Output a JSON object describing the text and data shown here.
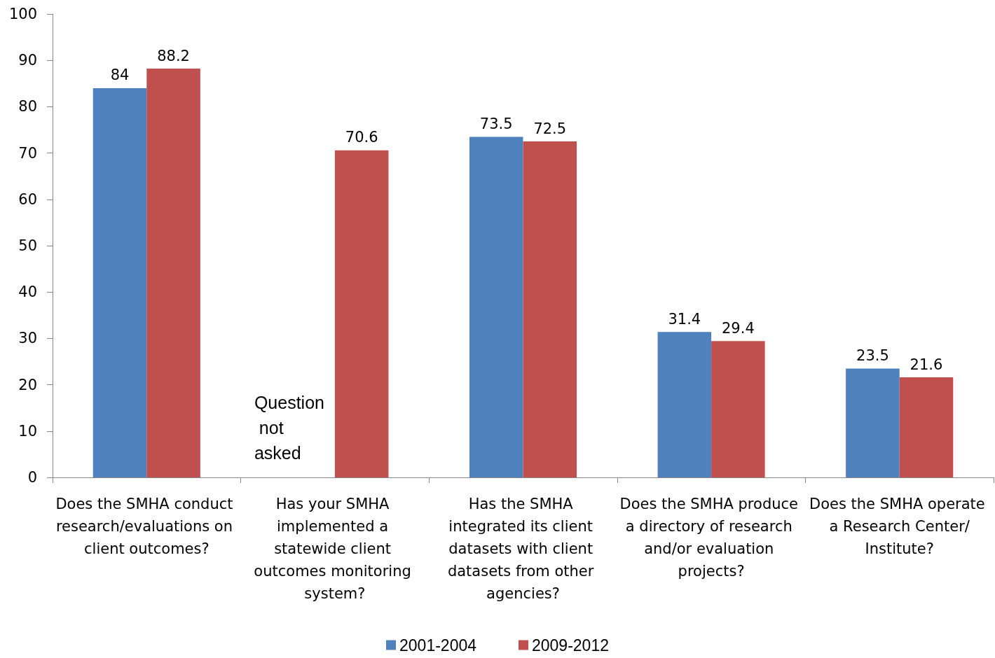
{
  "chart_data": {
    "type": "bar",
    "categories": [
      "Does the SMHA conduct research/evaluations on client outcomes?",
      "Has your SMHA implemented a statewide client outcomes monitoring system?",
      "Has the SMHA integrated its client datasets with client datasets from other agencies?",
      "Does the SMHA produce a directory of research and/or evaluation projects?",
      "Does the SMHA operate a Research Center/Institute?"
    ],
    "series": [
      {
        "name": "2001-2004",
        "color": "#4f81bd",
        "values": [
          84,
          null,
          73.5,
          31.4,
          23.5
        ]
      },
      {
        "name": "2009-2012",
        "color": "#c0504d",
        "values": [
          88.2,
          70.6,
          72.5,
          29.4,
          21.6
        ]
      }
    ],
    "ylim": [
      0,
      100
    ],
    "yticks": [
      0,
      10,
      20,
      30,
      40,
      50,
      60,
      70,
      80,
      90,
      100
    ],
    "grid": false,
    "legend": "bottom",
    "data_labels": true,
    "annotations": [
      {
        "text": "Question not asked",
        "x": "Has your SMHA implemented a statewide client outcomes monitoring system?",
        "y": 8
      }
    ]
  }
}
